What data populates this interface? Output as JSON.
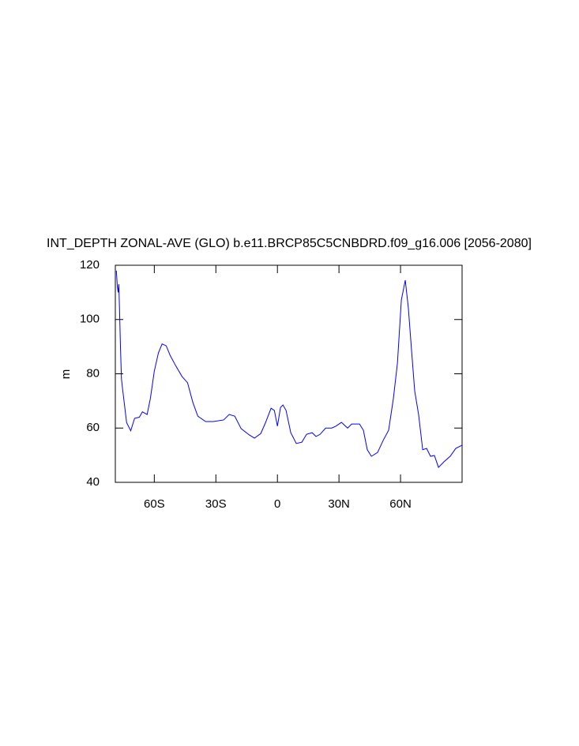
{
  "chart_data": {
    "type": "line",
    "title": "INT_DEPTH ZONAL-AVE (GLO) b.e11.BRCP85C5CNBDRD.f09_g16.006 [2056-2080]",
    "y_label": "m",
    "xlim": [
      -79,
      90
    ],
    "ylim": [
      40,
      120
    ],
    "xticks": [
      {
        "value": -60,
        "label": "60S"
      },
      {
        "value": -30,
        "label": "30S"
      },
      0,
      {
        "value": 30,
        "label": "30N"
      },
      {
        "value": 60,
        "label": "60N"
      }
    ],
    "yticks": [
      40,
      60,
      80,
      100,
      120
    ],
    "grid": false,
    "series": [
      {
        "color": "#0000ff",
        "x": [
          -78.5,
          -78,
          -77.6,
          -77.3,
          -77,
          -76.5,
          -76,
          -75.4,
          -73.5,
          -71.5,
          -69.6,
          -67.3,
          -65.8,
          -63.5,
          -61.9,
          -60,
          -58,
          -56.2,
          -54.2,
          -52.3,
          -49.6,
          -46.5,
          -43.8,
          -41.2,
          -38.8,
          -35,
          -31.2,
          -26.2,
          -23.5,
          -20.8,
          -17.7,
          -13.8,
          -11.2,
          -8.1,
          -5.8,
          -3.1,
          -1.5,
          0,
          1.5,
          2.7,
          4.2,
          6.5,
          9.2,
          11.9,
          14.2,
          16.9,
          18.8,
          20.8,
          23.5,
          26.5,
          28.5,
          31.2,
          34.2,
          36.2,
          40,
          41.9,
          43.8,
          45.8,
          48.8,
          51.5,
          54.2,
          56.5,
          58.5,
          60.4,
          62.3,
          63.8,
          65.4,
          66.9,
          68.8,
          70.8,
          72.7,
          74.6,
          76.5,
          78.5,
          81.2,
          84.2,
          86.9,
          90
        ],
        "values": [
          118,
          112,
          110,
          113,
          105,
          90,
          78,
          74,
          62,
          59,
          63.6,
          64,
          66,
          65,
          71,
          81,
          87.7,
          91,
          90.3,
          86.8,
          83,
          79,
          76.7,
          69.4,
          64.4,
          62.4,
          62.4,
          63,
          65,
          64.4,
          59.8,
          57.5,
          56.3,
          58,
          62,
          67.3,
          66.5,
          60.7,
          67.6,
          68.5,
          66.5,
          58.3,
          54.3,
          54.8,
          57.7,
          58.3,
          56.9,
          57.7,
          60,
          60,
          60.7,
          62.1,
          60,
          61.5,
          61.5,
          59.2,
          52,
          49.6,
          51,
          55.4,
          59.2,
          70.8,
          84,
          107.2,
          114.5,
          104.3,
          88.3,
          73.7,
          65,
          52,
          52.5,
          49.6,
          49.9,
          45.5,
          47.6,
          49.6,
          52.5,
          53.7
        ]
      }
    ]
  }
}
